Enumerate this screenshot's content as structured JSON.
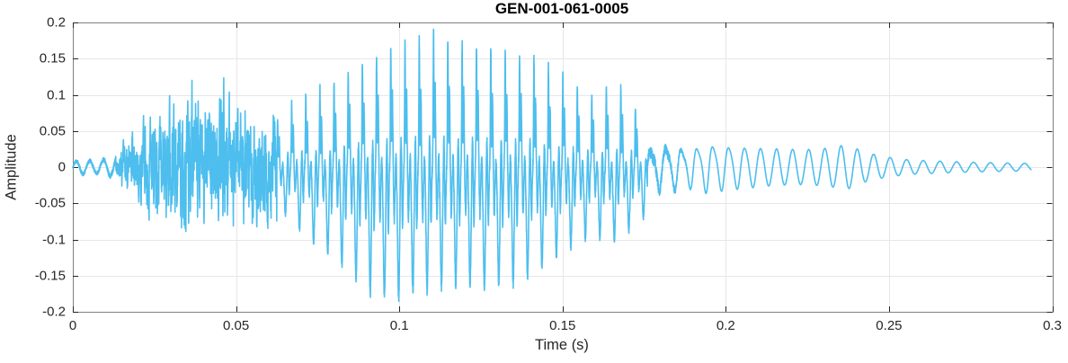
{
  "chart_data": {
    "type": "line",
    "title": "GEN-001-061-0005",
    "x_axis": {
      "label": "Time (s)",
      "range": [
        0,
        0.3
      ],
      "tick_values": [
        0,
        0.05,
        0.1,
        0.15,
        0.2,
        0.25,
        0.3
      ],
      "tick_labels": [
        "0",
        "0.05",
        "0.1",
        "0.15",
        "0.2",
        "0.25",
        "0.3"
      ]
    },
    "y_axis": {
      "label": "Amplitude",
      "range": [
        -0.2,
        0.2
      ],
      "tick_values": [
        -0.2,
        -0.15,
        -0.1,
        -0.05,
        0,
        0.05,
        0.1,
        0.15,
        0.2
      ],
      "tick_labels": [
        "-0.2",
        "-0.15",
        "-0.1",
        "-0.05",
        "0",
        "0.05",
        "0.1",
        "0.15",
        "0.2"
      ]
    },
    "grid": true,
    "legend": false,
    "colors": {
      "line": "#4DBEEE",
      "grid": "#e7e7e7",
      "frame": "#808080",
      "tick_mark": "#262626",
      "text": "#262626",
      "title_text": "#000000",
      "background": "#ffffff"
    },
    "line_width": 1.6,
    "series": [
      {
        "color": "#4DBEEE",
        "synthesis": {
          "fs": 30000,
          "t_end": 0.2935,
          "seed": 1234567,
          "segments": {
            "onset": {
              "t0": 0,
              "t1": 0.013,
              "freq": 240,
              "noise": 0.3,
              "amp_pts": [
                [
                  0,
                  0.007
                ],
                [
                  0.003,
                  0.01
                ],
                [
                  0.007,
                  0.008
                ],
                [
                  0.01,
                  0.011
                ],
                [
                  0.013,
                  0.013
                ]
              ]
            },
            "noise_burst": {
              "t0": 0.013,
              "t1": 0.0625,
              "smooth": 0.5,
              "gain": 2.6,
              "amp_pts": [
                [
                  0.013,
                  0.013
                ],
                [
                  0.017,
                  0.022
                ],
                [
                  0.021,
                  0.034
                ],
                [
                  0.025,
                  0.048
                ],
                [
                  0.029,
                  0.05
                ],
                [
                  0.033,
                  0.062
                ],
                [
                  0.036,
                  0.068
                ],
                [
                  0.039,
                  0.056
                ],
                [
                  0.043,
                  0.06
                ],
                [
                  0.047,
                  0.064
                ],
                [
                  0.051,
                  0.055
                ],
                [
                  0.055,
                  0.06
                ],
                [
                  0.059,
                  0.052
                ],
                [
                  0.0625,
                  0.05
                ]
              ]
            },
            "voiced": {
              "t0": 0.0625,
              "t1": 0.176,
              "f0_start": 232,
              "f0_end": 224,
              "noise": 0.05,
              "norm_pos": 1.1,
              "norm_neg": 1.05,
              "pulse_components": [
                {
                  "center": 0.06,
                  "width": 0.035,
                  "amp": 1.0
                },
                {
                  "center": 0.17,
                  "width": 0.045,
                  "amp": 0.78
                },
                {
                  "center": 0.3,
                  "width": 0.055,
                  "amp": -0.5
                },
                {
                  "center": 0.43,
                  "width": 0.05,
                  "amp": 0.22
                },
                {
                  "center": 0.6,
                  "width": 0.1,
                  "amp": -1.0
                },
                {
                  "center": 0.78,
                  "width": 0.05,
                  "amp": 0.18
                },
                {
                  "center": 0.88,
                  "width": 0.05,
                  "amp": -0.42
                }
              ],
              "ripple": {
                "amp": 0.1,
                "cycles": 4,
                "phase": 0.5
              },
              "pos_pts": [
                [
                  0.0625,
                  0.065
                ],
                [
                  0.068,
                  0.095
                ],
                [
                  0.075,
                  0.11
                ],
                [
                  0.082,
                  0.125
                ],
                [
                  0.09,
                  0.148
                ],
                [
                  0.098,
                  0.166
                ],
                [
                  0.105,
                  0.175
                ],
                [
                  0.111,
                  0.188
                ],
                [
                  0.118,
                  0.173
                ],
                [
                  0.127,
                  0.168
                ],
                [
                  0.134,
                  0.16
                ],
                [
                  0.141,
                  0.152
                ],
                [
                  0.147,
                  0.138
                ],
                [
                  0.153,
                  0.118
                ],
                [
                  0.158,
                  0.098
                ],
                [
                  0.1635,
                  0.113
                ],
                [
                  0.169,
                  0.112
                ],
                [
                  0.1725,
                  0.082
                ],
                [
                  0.176,
                  0.05
                ]
              ],
              "neg_pts": [
                [
                  0.0625,
                  0.055
                ],
                [
                  0.07,
                  0.095
                ],
                [
                  0.078,
                  0.125
                ],
                [
                  0.085,
                  0.155
                ],
                [
                  0.091,
                  0.183
                ],
                [
                  0.097,
                  0.19
                ],
                [
                  0.104,
                  0.183
                ],
                [
                  0.111,
                  0.175
                ],
                [
                  0.119,
                  0.168
                ],
                [
                  0.128,
                  0.173
                ],
                [
                  0.135,
                  0.168
                ],
                [
                  0.142,
                  0.152
                ],
                [
                  0.148,
                  0.13
                ],
                [
                  0.154,
                  0.112
                ],
                [
                  0.159,
                  0.1
                ],
                [
                  0.164,
                  0.105
                ],
                [
                  0.168,
                  0.108
                ],
                [
                  0.171,
                  0.086
                ],
                [
                  0.174,
                  0.086
                ],
                [
                  0.176,
                  0.055
                ]
              ]
            },
            "tail": {
              "t0": 0.176,
              "t1": 0.2935,
              "freq_start": 212,
              "freq_end": 190,
              "h2": 0.25,
              "h2_fade_start": 0.19,
              "h2_fade_end": 0.215,
              "noise": 0.4,
              "noise_until": 0.191,
              "amp_pts": [
                [
                  0.176,
                  0.02
                ],
                [
                  0.179,
                  0.026
                ],
                [
                  0.183,
                  0.028
                ],
                [
                  0.188,
                  0.024
                ],
                [
                  0.194,
                  0.031
                ],
                [
                  0.2,
                  0.029
                ],
                [
                  0.208,
                  0.027
                ],
                [
                  0.216,
                  0.025
                ],
                [
                  0.224,
                  0.024
                ],
                [
                  0.231,
                  0.026
                ],
                [
                  0.237,
                  0.031
                ],
                [
                  0.243,
                  0.02
                ],
                [
                  0.249,
                  0.014
                ],
                [
                  0.256,
                  0.01
                ],
                [
                  0.264,
                  0.0085
                ],
                [
                  0.273,
                  0.007
                ],
                [
                  0.282,
                  0.006
                ],
                [
                  0.2935,
                  0.005
                ]
              ]
            }
          }
        }
      }
    ]
  }
}
